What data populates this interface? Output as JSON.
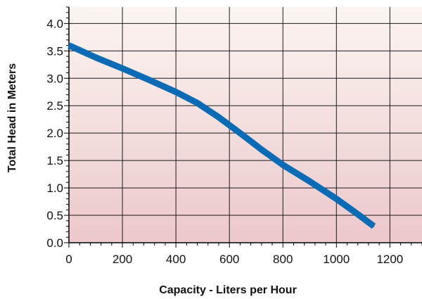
{
  "chart_data": {
    "type": "line",
    "title": "",
    "xlabel": "Capacity - Liters per Hour",
    "ylabel": "Total Head in Meters",
    "xlim": [
      0,
      1320
    ],
    "ylim": [
      0,
      4.3
    ],
    "x_ticks": [
      0,
      200,
      400,
      600,
      800,
      1000,
      1200
    ],
    "y_ticks": [
      0.0,
      0.5,
      1.0,
      1.5,
      2.0,
      2.5,
      3.0,
      3.5,
      4.0
    ],
    "x_tick_labels": [
      "0",
      "200",
      "400",
      "600",
      "800",
      "1000",
      "1200"
    ],
    "y_tick_labels": [
      "0.0",
      "0.5",
      "1.0",
      "1.5",
      "2.0",
      "2.5",
      "3.0",
      "3.5",
      "4.0"
    ],
    "x_gridlines": [
      200,
      400,
      600,
      800,
      1000,
      1200
    ],
    "y_gridlines": [
      0.5,
      1.0,
      1.5,
      2.0,
      2.5,
      3.0,
      3.5,
      4.0
    ],
    "grid": true,
    "legend": "none",
    "series": [
      {
        "x": [
          0,
          100,
          200,
          300,
          400,
          480,
          560,
          640,
          720,
          800,
          900,
          1000,
          1080,
          1140
        ],
        "y": [
          3.6,
          3.38,
          3.18,
          2.97,
          2.75,
          2.55,
          2.29,
          2.0,
          1.7,
          1.42,
          1.12,
          0.8,
          0.52,
          0.3
        ]
      }
    ],
    "colors": {
      "series": "#0b6bb5",
      "background_top": "#fbf5f1",
      "background_bottom": "#ecc8cb",
      "grid": "#1a1a1a"
    }
  }
}
